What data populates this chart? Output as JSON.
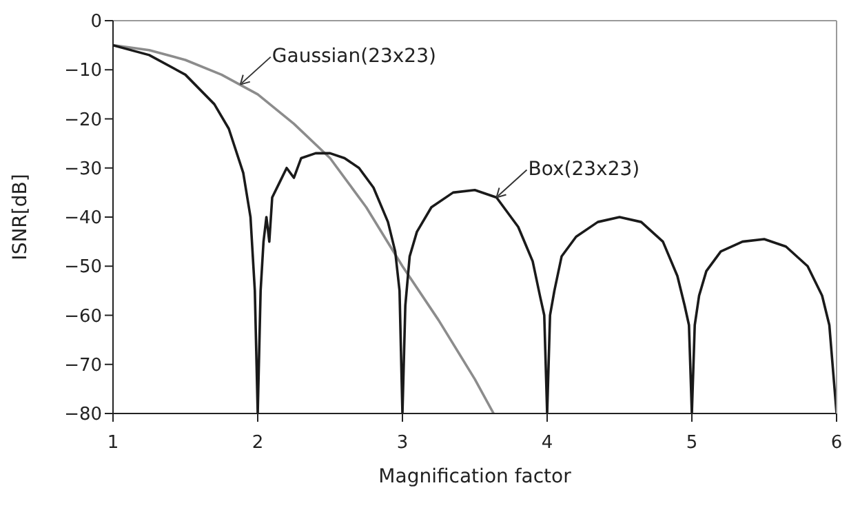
{
  "chart_data": {
    "type": "line",
    "xlabel": "Magnification factor",
    "ylabel": "ISNR[dB]",
    "xlim": [
      1,
      6
    ],
    "xticks": [
      1,
      2,
      3,
      4,
      5,
      6
    ],
    "ylim": [
      -80,
      0
    ],
    "yticks": [
      -80,
      -70,
      -60,
      -50,
      -40,
      -30,
      -20,
      -10,
      0
    ],
    "grid": false,
    "legend": false,
    "marker": "none",
    "line_style": "solid",
    "series": [
      {
        "color": "#8c8c8c",
        "x": [
          1,
          1.25,
          1.5,
          1.75,
          2,
          2.25,
          2.5,
          2.75,
          3,
          3.25,
          3.5,
          3.63
        ],
        "values": [
          -5,
          -6,
          -8,
          -11,
          -15,
          -21,
          -28,
          -38,
          -50,
          -61,
          -73,
          -80
        ]
      },
      {
        "color": "#1a1a1a",
        "x": [
          1,
          1.25,
          1.5,
          1.7,
          1.8,
          1.9,
          1.95,
          1.98,
          2,
          2.02,
          2.04,
          2.06,
          2.08,
          2.1,
          2.15,
          2.2,
          2.25,
          2.3,
          2.4,
          2.5,
          2.6,
          2.7,
          2.8,
          2.9,
          2.95,
          2.98,
          3,
          3.02,
          3.05,
          3.1,
          3.2,
          3.35,
          3.5,
          3.65,
          3.8,
          3.9,
          3.95,
          3.98,
          4,
          4.02,
          4.05,
          4.1,
          4.2,
          4.35,
          4.5,
          4.65,
          4.8,
          4.9,
          4.95,
          4.98,
          5,
          5.02,
          5.05,
          5.1,
          5.2,
          5.35,
          5.5,
          5.65,
          5.8,
          5.9,
          5.95,
          6
        ],
        "values": [
          -5,
          -7,
          -11,
          -17,
          -22,
          -31,
          -40,
          -55,
          -80,
          -55,
          -45,
          -40,
          -45,
          -36,
          -33,
          -30,
          -32,
          -28,
          -27,
          -27,
          -28,
          -30,
          -34,
          -41,
          -47,
          -55,
          -80,
          -58,
          -48,
          -43,
          -38,
          -35,
          -34.5,
          -36,
          -42,
          -49,
          -56,
          -60,
          -80,
          -60,
          -55,
          -48,
          -44,
          -41,
          -40,
          -41,
          -45,
          -52,
          -58,
          -62,
          -80,
          -62,
          -56,
          -51,
          -47,
          -45,
          -44.5,
          -46,
          -50,
          -56,
          -62,
          -80
        ]
      }
    ],
    "annotations": [
      {
        "text": "Gaussian(23x23)",
        "x": 1.88,
        "y": -13
      },
      {
        "text": "Box(23x23)",
        "x": 3.65,
        "y": -36
      }
    ]
  }
}
